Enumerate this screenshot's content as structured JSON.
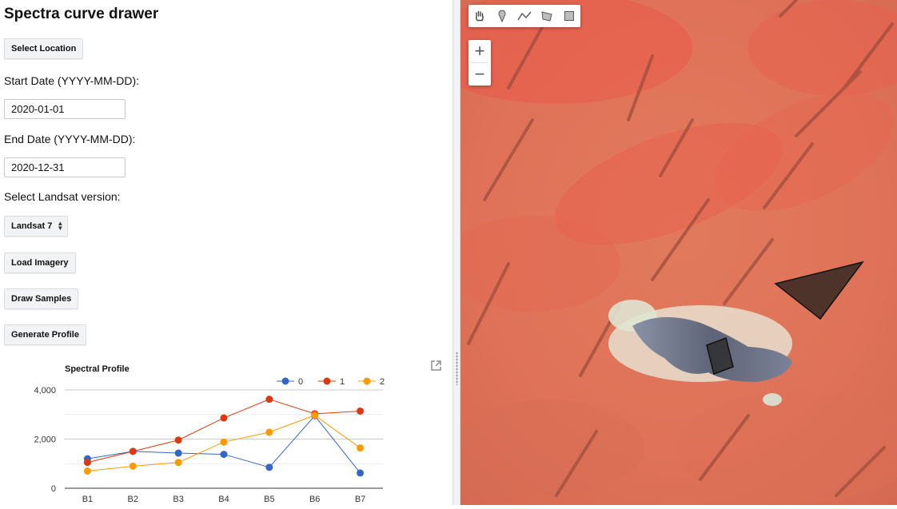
{
  "panel": {
    "title": "Spectra curve drawer",
    "select_location_label": "Select Location",
    "start_date_label": "Start Date (YYYY-MM-DD):",
    "start_date_value": "2020-01-01",
    "end_date_label": "End Date (YYYY-MM-DD):",
    "end_date_value": "2020-12-31",
    "landsat_label": "Select Landsat version:",
    "landsat_selected": "Landsat 7",
    "load_imagery_label": "Load Imagery",
    "draw_samples_label": "Draw Samples",
    "generate_profile_label": "Generate Profile"
  },
  "map": {
    "tools": [
      "hand-icon",
      "point-icon",
      "line-icon",
      "polygon-icon",
      "rectangle-icon"
    ],
    "zoom_in": "+",
    "zoom_out": "−"
  },
  "chart_data": {
    "type": "line",
    "title": "Spectral Profile",
    "categories": [
      "B1",
      "B2",
      "B3",
      "B4",
      "B5",
      "B6",
      "B7"
    ],
    "series": [
      {
        "name": "0",
        "color": "#3366cc",
        "values": [
          1200,
          1500,
          1430,
          1380,
          850,
          2950,
          620
        ]
      },
      {
        "name": "1",
        "color": "#dc3912",
        "values": [
          1050,
          1500,
          1960,
          2860,
          3620,
          3030,
          3140
        ]
      },
      {
        "name": "2",
        "color": "#ff9900",
        "values": [
          700,
          900,
          1050,
          1880,
          2280,
          2970,
          1640
        ]
      }
    ],
    "ylim": [
      0,
      4000
    ],
    "yticks": [
      "0",
      "2,000",
      "4,000"
    ],
    "legend_position": "top-right",
    "grid": true
  }
}
